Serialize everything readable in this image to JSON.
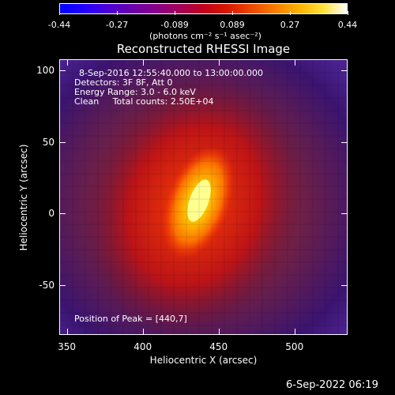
{
  "colorbar": {
    "ticks": [
      "-0.44",
      "-0.27",
      "-0.089",
      "0.089",
      "0.27",
      "0.44"
    ],
    "unit_label": "(photons cm⁻² s⁻¹ asec⁻²)",
    "min": -0.44,
    "max": 0.44,
    "palette": [
      "#0000ff",
      "#2400ff",
      "#4b00d8",
      "#6a00a8",
      "#86008a",
      "#a30058",
      "#c0001c",
      "#d81800",
      "#ec4800",
      "#f77d00",
      "#fdb200",
      "#ffe03b",
      "#ffffff"
    ]
  },
  "plot": {
    "title": "Reconstructed RHESSI Image",
    "xlabel": "Heliocentric X (arcsec)",
    "ylabel": "Heliocentric Y (arcsec)",
    "x_ticks": [
      "350",
      "400",
      "450",
      "500"
    ],
    "y_ticks": [
      "100",
      "50",
      "0",
      "-50"
    ],
    "x_range": [
      345,
      535
    ],
    "y_range": [
      -85,
      108
    ]
  },
  "annotations": {
    "time_range": "8-Sep-2016 12:55:40.000 to 13:00:00.000",
    "detectors": "Detectors: 3F 8F, Att 0",
    "energy": "Energy Range: 3.0 - 6.0 keV",
    "method": "Clean     Total counts: 2.50E+04",
    "peak": "Position of Peak = [440,7]"
  },
  "footer": {
    "timestamp": "6-Sep-2022 06:19"
  }
}
